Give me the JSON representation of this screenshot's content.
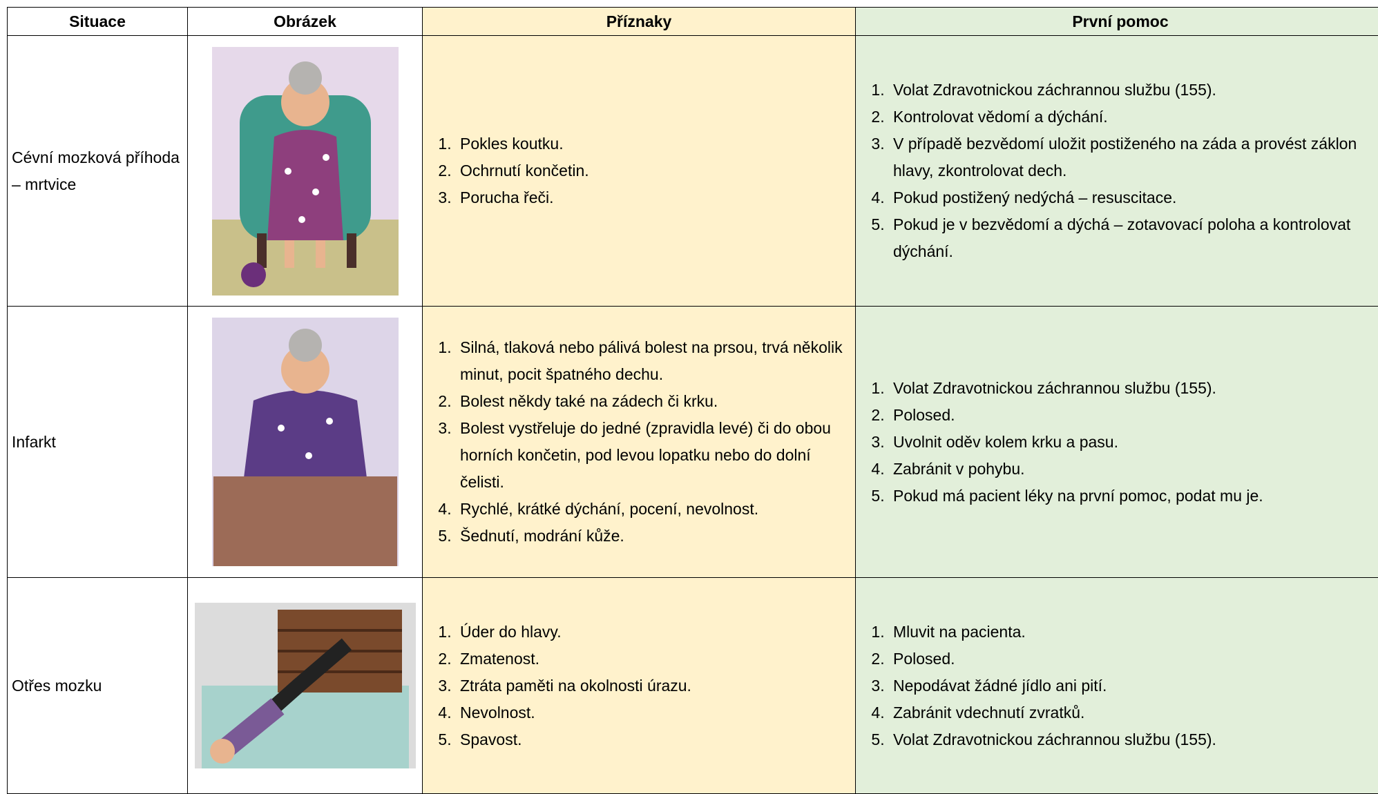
{
  "table": {
    "header": [
      "Situace",
      "Obrázek",
      "Příznaky",
      "První pomoc"
    ],
    "rows": [
      {
        "situation": "Cévní mozková příhoda – mrtvice",
        "symptoms": [
          "Pokles koutku.",
          "Ochrnutí končetin.",
          "Porucha řeči."
        ],
        "first_aid": [
          "Volat Zdravotnickou záchrannou službu (155).",
          "Kontrolovat vědomí a dýchání.",
          "V případě bezvědomí uložit postiženého na záda a provést záklon hlavy, zkontrolovat dech.",
          "Pokud postižený nedýchá – resuscitace.",
          "Pokud je v bezvědomí a dýchá – zotavovací poloha a kontrolovat dýchání."
        ]
      },
      {
        "situation": "Infarkt",
        "symptoms": [
          "Silná, tlaková nebo pálivá bolest na prsou, trvá několik minut, pocit špatného dechu.",
          "Bolest někdy také na zádech či krku.",
          "Bolest vystřeluje do jedné (zpravidla levé) či do obou horních končetin, pod levou lopatku nebo do dolní čelisti.",
          "Rychlé, krátké dýchání, pocení, nevolnost.",
          "Šednutí, modrání kůže."
        ],
        "first_aid": [
          "Volat Zdravotnickou záchrannou službu (155).",
          "Polosed.",
          "Uvolnit oděv kolem krku a pasu.",
          "Zabránit v pohybu.",
          "Pokud má pacient léky na první pomoc, podat mu je."
        ]
      },
      {
        "situation": "Otřes mozku",
        "symptoms": [
          "Úder do hlavy.",
          "Zmatenost.",
          "Ztráta paměti na okolnosti úrazu.",
          "Nevolnost.",
          "Spavost."
        ],
        "first_aid": [
          "Mluvit na pacienta.",
          "Polosed.",
          "Nepodávat žádné jídlo ani pití.",
          "Zabránit vdechnutí zvratků.",
          "Volat Zdravotnickou záchrannou službu (155)."
        ]
      }
    ]
  }
}
